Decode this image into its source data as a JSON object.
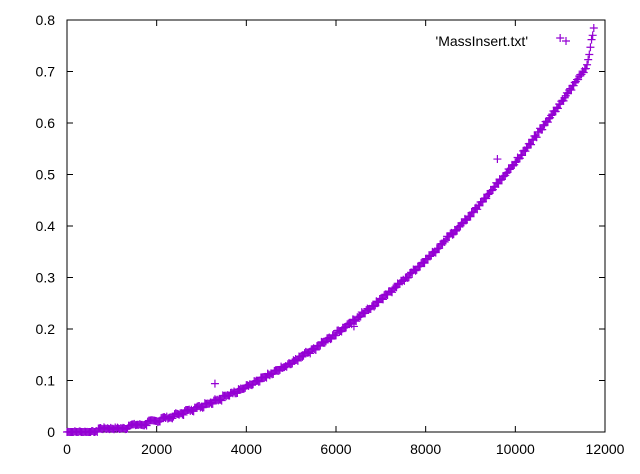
{
  "chart_data": {
    "type": "scatter",
    "title": "",
    "xlabel": "",
    "ylabel": "",
    "xlim": [
      0,
      12000
    ],
    "ylim": [
      0,
      0.8
    ],
    "xticks": [
      0,
      2000,
      4000,
      6000,
      8000,
      10000,
      12000
    ],
    "yticks": [
      0,
      0.1,
      0.2,
      0.3,
      0.4,
      0.5,
      0.6,
      0.7,
      0.8
    ],
    "xtick_labels": [
      "0",
      "2000",
      "4000",
      "6000",
      "8000",
      "10000",
      "12000"
    ],
    "ytick_labels": [
      "0",
      "0.1",
      "0.2",
      "0.3",
      "0.4",
      "0.5",
      "0.6",
      "0.7",
      "0.8"
    ],
    "grid": false,
    "legend_position": "top-right",
    "marker": "plus",
    "series": [
      {
        "name": "'MassInsert.txt'",
        "color": "#9400d3",
        "x": [
          0,
          400,
          800,
          1200,
          1600,
          2000,
          2400,
          2800,
          3200,
          3600,
          4000,
          4400,
          4800,
          5200,
          5600,
          6000,
          6400,
          6800,
          7200,
          7600,
          8000,
          8400,
          8800,
          9200,
          9600,
          10000,
          10400,
          10800,
          11200,
          11600,
          11750
        ],
        "y": [
          0.0,
          0.002,
          0.004,
          0.008,
          0.014,
          0.022,
          0.032,
          0.044,
          0.057,
          0.072,
          0.088,
          0.105,
          0.124,
          0.145,
          0.167,
          0.191,
          0.216,
          0.243,
          0.272,
          0.302,
          0.334,
          0.368,
          0.404,
          0.442,
          0.482,
          0.524,
          0.568,
          0.614,
          0.662,
          0.712,
          0.785
        ],
        "outliers": {
          "x": [
            3300,
            6400,
            9600,
            11000
          ],
          "y": [
            0.094,
            0.205,
            0.53,
            0.765
          ]
        }
      }
    ]
  }
}
